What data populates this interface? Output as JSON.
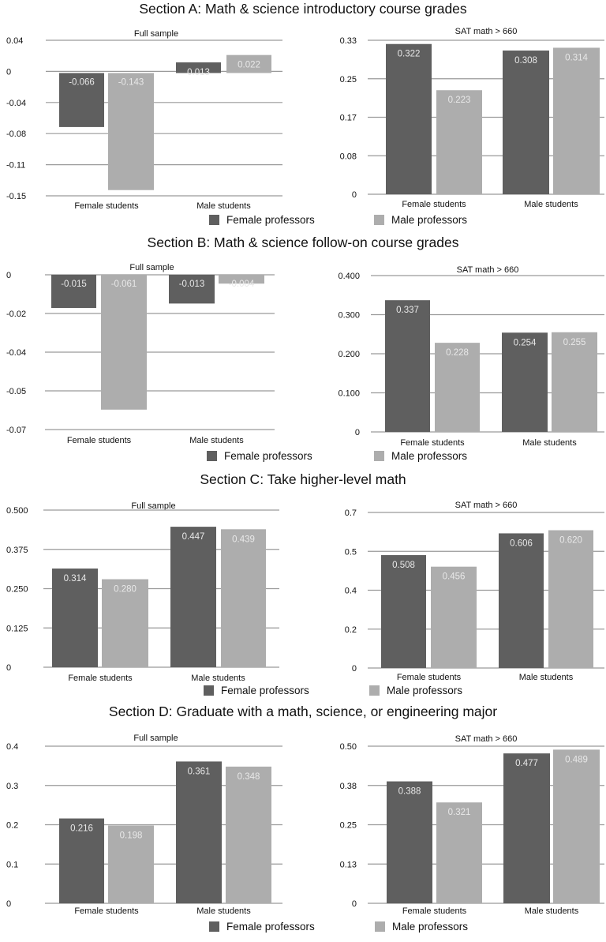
{
  "colors": {
    "female_professors": "#5f5f5f",
    "male_professors": "#adadad",
    "grid": "#9a9a9a",
    "text": "#111111",
    "label_text": "#e8e8e8"
  },
  "chart_data": [
    {
      "section": "Section A: Math & science introductory course grades",
      "legend": [
        "Female professors",
        "Male professors"
      ],
      "panels": [
        {
          "type": "bar",
          "title": "Full sample",
          "categories": [
            "Female students",
            "Male students"
          ],
          "yticks": [
            "0.04",
            "0",
            "-0.04",
            "-0.08",
            "-0.11",
            "-0.15"
          ],
          "ylim": [
            -0.15,
            0.04
          ],
          "series": [
            {
              "name": "Female professors",
              "values": [
                -0.066,
                0.013
              ],
              "labels": [
                "-0.066",
                "0.013"
              ]
            },
            {
              "name": "Male professors",
              "values": [
                -0.143,
                0.022
              ],
              "labels": [
                "-0.143",
                "0.022"
              ]
            }
          ]
        },
        {
          "type": "bar",
          "title": "SAT math > 660",
          "categories": [
            "Female students",
            "Male students"
          ],
          "yticks": [
            "0.33",
            "0.25",
            "0.17",
            "0.08",
            "0"
          ],
          "ylim": [
            0,
            0.33
          ],
          "series": [
            {
              "name": "Female professors",
              "values": [
                0.322,
                0.308
              ],
              "labels": [
                "0.322",
                "0.308"
              ]
            },
            {
              "name": "Male professors",
              "values": [
                0.223,
                0.314
              ],
              "labels": [
                "0.223",
                "0.314"
              ]
            }
          ]
        }
      ]
    },
    {
      "section": "Section B: Math & science follow-on course grades",
      "legend": [
        "Female professors",
        "Male professors"
      ],
      "panels": [
        {
          "type": "bar",
          "title": "Full sample",
          "categories": [
            "Female students",
            "Male students"
          ],
          "yticks": [
            "0",
            "-0.02",
            "-0.04",
            "-0.05",
            "-0.07"
          ],
          "ylim": [
            -0.07,
            0
          ],
          "series": [
            {
              "name": "Female professors",
              "values": [
                -0.015,
                -0.013
              ],
              "labels": [
                "-0.015",
                "-0.013"
              ]
            },
            {
              "name": "Male professors",
              "values": [
                -0.061,
                -0.004
              ],
              "labels": [
                "-0.061",
                "-0.004"
              ]
            }
          ]
        },
        {
          "type": "bar",
          "title": "SAT math > 660",
          "categories": [
            "Female students",
            "Male students"
          ],
          "yticks": [
            "0.400",
            "0.300",
            "0.200",
            "0.100",
            "0"
          ],
          "ylim": [
            0,
            0.4
          ],
          "series": [
            {
              "name": "Female professors",
              "values": [
                0.337,
                0.254
              ],
              "labels": [
                "0.337",
                "0.254"
              ]
            },
            {
              "name": "Male professors",
              "values": [
                0.228,
                0.255
              ],
              "labels": [
                "0.228",
                "0.255"
              ]
            }
          ]
        }
      ]
    },
    {
      "section": "Section C: Take higher-level math",
      "legend": [
        "Female professors",
        "Male professors"
      ],
      "panels": [
        {
          "type": "bar",
          "title": "Full sample",
          "categories": [
            "Female students",
            "Male students"
          ],
          "yticks": [
            "0.500",
            "0.375",
            "0.250",
            "0.125",
            "0"
          ],
          "ylim": [
            0,
            0.5
          ],
          "series": [
            {
              "name": "Female professors",
              "values": [
                0.314,
                0.447
              ],
              "labels": [
                "0.314",
                "0.447"
              ]
            },
            {
              "name": "Male professors",
              "values": [
                0.28,
                0.439
              ],
              "labels": [
                "0.280",
                "0.439"
              ]
            }
          ]
        },
        {
          "type": "bar",
          "title": "SAT math > 660",
          "categories": [
            "Female students",
            "Male students"
          ],
          "yticks": [
            "0.7",
            "0.5",
            "0.4",
            "0.2",
            "0"
          ],
          "ylim": [
            0,
            0.7
          ],
          "series": [
            {
              "name": "Female professors",
              "values": [
                0.508,
                0.606
              ],
              "labels": [
                "0.508",
                "0.606"
              ]
            },
            {
              "name": "Male professors",
              "values": [
                0.456,
                0.62
              ],
              "labels": [
                "0.456",
                "0.620"
              ]
            }
          ]
        }
      ]
    },
    {
      "section": "Section D: Graduate with a math, science, or engineering major",
      "legend": [
        "Female professors",
        "Male professors"
      ],
      "panels": [
        {
          "type": "bar",
          "title": "Full sample",
          "categories": [
            "Female students",
            "Male students"
          ],
          "yticks": [
            "0.4",
            "0.3",
            "0.2",
            "0.1",
            "0"
          ],
          "ylim": [
            0,
            0.4
          ],
          "series": [
            {
              "name": "Female professors",
              "values": [
                0.216,
                0.361
              ],
              "labels": [
                "0.216",
                "0.361"
              ]
            },
            {
              "name": "Male professors",
              "values": [
                0.198,
                0.348
              ],
              "labels": [
                "0.198",
                "0.348"
              ]
            }
          ]
        },
        {
          "type": "bar",
          "title": "SAT math > 660",
          "categories": [
            "Female students",
            "Male students"
          ],
          "yticks": [
            "0.50",
            "0.38",
            "0.25",
            "0.13",
            "0"
          ],
          "ylim": [
            0,
            0.5
          ],
          "series": [
            {
              "name": "Female professors",
              "values": [
                0.388,
                0.477
              ],
              "labels": [
                "0.388",
                "0.477"
              ]
            },
            {
              "name": "Male professors",
              "values": [
                0.321,
                0.489
              ],
              "labels": [
                "0.321",
                "0.489"
              ]
            }
          ]
        }
      ]
    }
  ]
}
